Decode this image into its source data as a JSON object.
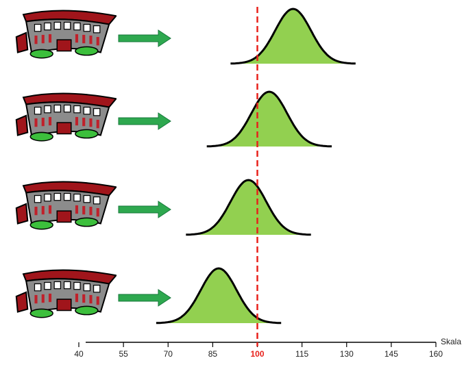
{
  "chart_data": {
    "type": "density",
    "axis_label": "Skala",
    "means": [
      112,
      104,
      97,
      87
    ],
    "sd": 6,
    "ref": 100,
    "ref_color": "#e8201a",
    "color": "#92d050",
    "xlim": [
      40,
      160
    ],
    "xticks": [
      40,
      55,
      70,
      85,
      100,
      115,
      130,
      145,
      160
    ]
  }
}
